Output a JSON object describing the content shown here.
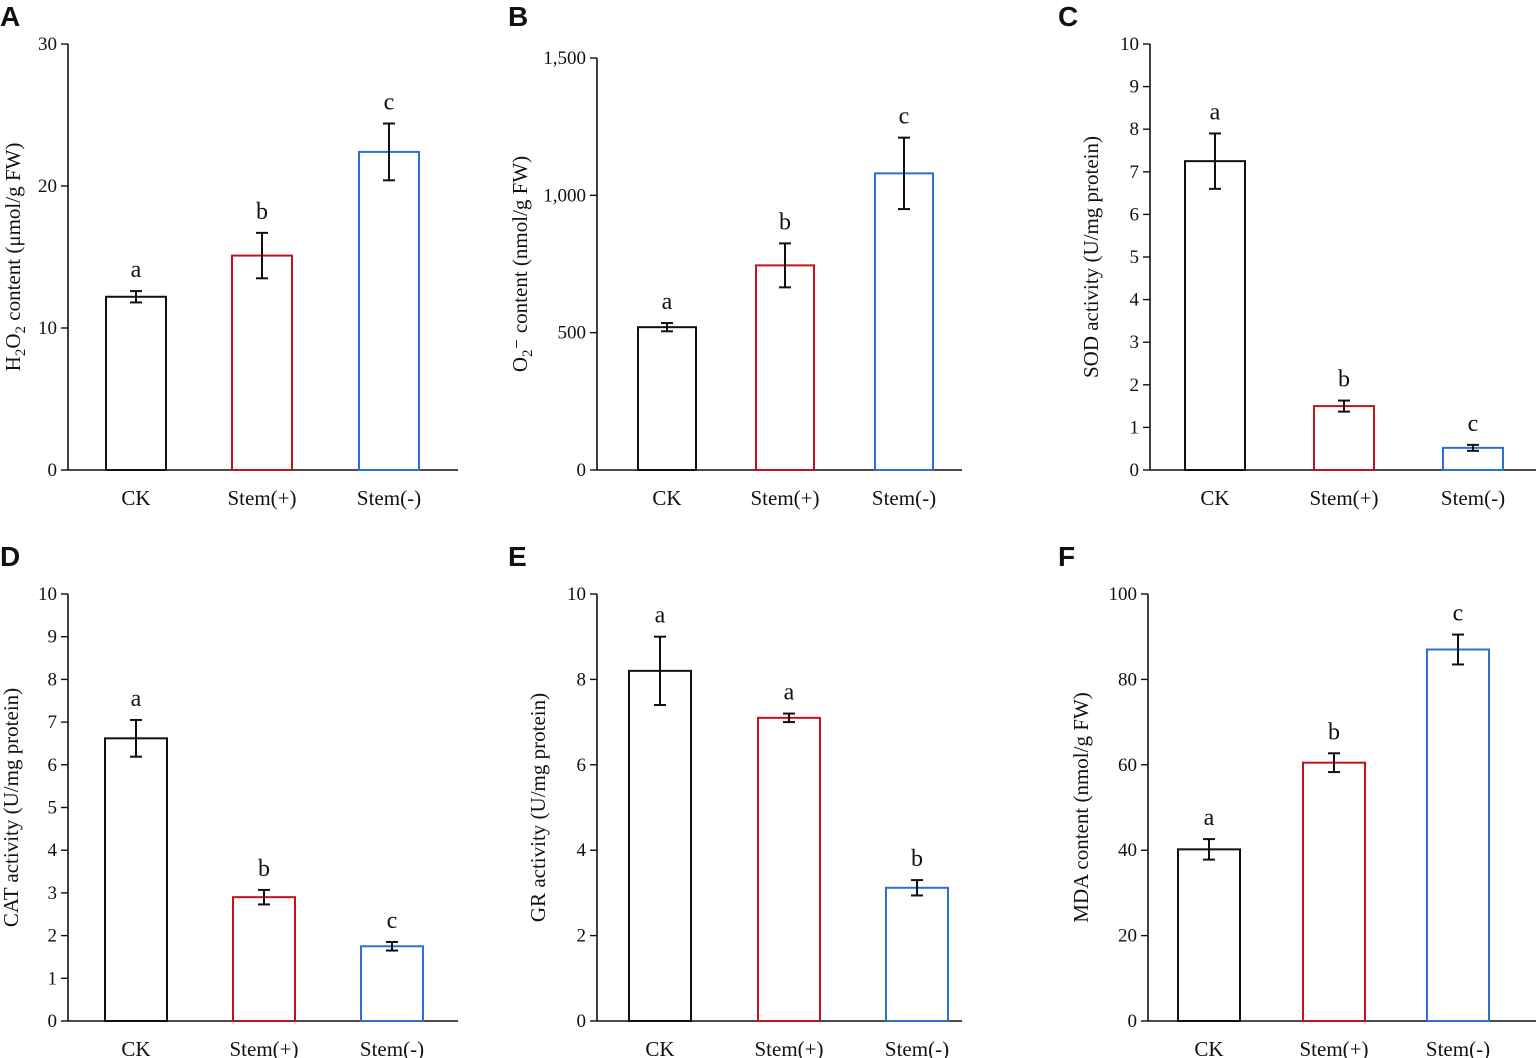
{
  "figure_title": "",
  "bar_colors": [
    "#111111",
    "#c0141c",
    "#2e6fd4"
  ],
  "chart_data": [
    {
      "panel": "A",
      "type": "bar",
      "categories": [
        "CK",
        "Stem(+)",
        "Stem(-)"
      ],
      "values": [
        12.2,
        15.1,
        22.4
      ],
      "errors": [
        0.4,
        1.6,
        2.0
      ],
      "significance": [
        "a",
        "b",
        "c"
      ],
      "ylim": [
        0,
        30
      ],
      "yticks": [
        0,
        10,
        20,
        30
      ],
      "ytick_labels": [
        "0",
        "10",
        "20",
        "30"
      ],
      "ylabel_parts": [
        {
          "text": "H",
          "sub": false
        },
        {
          "text": "2",
          "sub": true
        },
        {
          "text": "O",
          "sub": false
        },
        {
          "text": "2",
          "sub": true
        },
        {
          "text": " content (μmol/g FW)",
          "sub": false
        }
      ],
      "xlabel": "",
      "title": ""
    },
    {
      "panel": "B",
      "type": "bar",
      "categories": [
        "CK",
        "Stem(+)",
        "Stem(-)"
      ],
      "values": [
        520,
        745,
        1080
      ],
      "errors": [
        15,
        80,
        130
      ],
      "significance": [
        "a",
        "b",
        "c"
      ],
      "ylim": [
        0,
        1500
      ],
      "yticks": [
        0,
        500,
        1000,
        1500
      ],
      "ytick_labels": [
        "0",
        "500",
        "1,000",
        "1,500"
      ],
      "ylabel_parts": [
        {
          "text": "O",
          "sub": false
        },
        {
          "text": "2",
          "sub": true
        },
        {
          "text": "⁻ content (nmol/g FW)",
          "sub": false
        }
      ],
      "xlabel": "",
      "title": ""
    },
    {
      "panel": "C",
      "type": "bar",
      "categories": [
        "CK",
        "Stem(+)",
        "Stem(-)"
      ],
      "values": [
        7.25,
        1.5,
        0.52
      ],
      "errors": [
        0.65,
        0.13,
        0.07
      ],
      "significance": [
        "a",
        "b",
        "c"
      ],
      "ylim": [
        0,
        10
      ],
      "yticks": [
        0,
        1,
        2,
        3,
        4,
        5,
        6,
        7,
        8,
        9,
        10
      ],
      "ytick_labels": [
        "0",
        "1",
        "2",
        "3",
        "4",
        "5",
        "6",
        "7",
        "8",
        "9",
        "10"
      ],
      "ylabel_parts": [
        {
          "text": "SOD activity (U/mg protein)",
          "sub": false
        }
      ],
      "xlabel": "",
      "title": ""
    },
    {
      "panel": "D",
      "type": "bar",
      "categories": [
        "CK",
        "Stem(+)",
        "Stem(-)"
      ],
      "values": [
        6.62,
        2.9,
        1.75
      ],
      "errors": [
        0.43,
        0.17,
        0.1
      ],
      "significance": [
        "a",
        "b",
        "c"
      ],
      "ylim": [
        0,
        10
      ],
      "yticks": [
        0,
        1,
        2,
        3,
        4,
        5,
        6,
        7,
        8,
        9,
        10
      ],
      "ytick_labels": [
        "0",
        "1",
        "2",
        "3",
        "4",
        "5",
        "6",
        "7",
        "8",
        "9",
        "10"
      ],
      "ylabel_parts": [
        {
          "text": "CAT activity (U/mg protein)",
          "sub": false
        }
      ],
      "xlabel": "",
      "title": ""
    },
    {
      "panel": "E",
      "type": "bar",
      "categories": [
        "CK",
        "Stem(+)",
        "Stem(-)"
      ],
      "values": [
        8.2,
        7.1,
        3.12
      ],
      "errors": [
        0.8,
        0.1,
        0.18
      ],
      "significance": [
        "a",
        "a",
        "b"
      ],
      "ylim": [
        0,
        10
      ],
      "yticks": [
        0,
        2,
        4,
        6,
        8,
        10
      ],
      "ytick_labels": [
        "0",
        "2",
        "4",
        "6",
        "8",
        "10"
      ],
      "ylabel_parts": [
        {
          "text": "GR activity (U/mg protein)",
          "sub": false
        }
      ],
      "xlabel": "",
      "title": ""
    },
    {
      "panel": "F",
      "type": "bar",
      "categories": [
        "CK",
        "Stem(+)",
        "Stem(-)"
      ],
      "values": [
        40.2,
        60.5,
        87.0
      ],
      "errors": [
        2.4,
        2.2,
        3.5
      ],
      "significance": [
        "a",
        "b",
        "c"
      ],
      "ylim": [
        0,
        100
      ],
      "yticks": [
        0,
        20,
        40,
        60,
        80,
        100
      ],
      "ytick_labels": [
        "0",
        "20",
        "40",
        "60",
        "80",
        "100"
      ],
      "ylabel_parts": [
        {
          "text": "MDA content (nmol/g FW)",
          "sub": false
        }
      ],
      "xlabel": "",
      "title": ""
    }
  ]
}
